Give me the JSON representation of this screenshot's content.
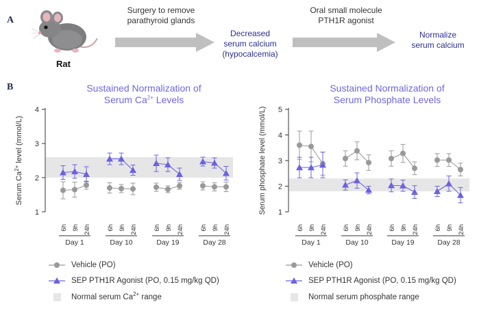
{
  "panelA": {
    "label": "A",
    "animal_label": "Rat",
    "step1": "Surgery to remove\nparathyroid glands",
    "outcome1_line1": "Decreased",
    "outcome1_line2": "serum calcium",
    "outcome1_line3": "(hypocalcemia)",
    "step2": "Oral small molecule\nPTH1R agonist",
    "outcome2_line1": "Normalize",
    "outcome2_line2": "serum calcium"
  },
  "panelB": {
    "label": "B"
  },
  "colors": {
    "vehicle": "#999999",
    "agonist": "#6b62e0",
    "band": "#e6e6e6",
    "title": "#6f66e0",
    "arrow": "#bfbfbf"
  },
  "chart_data": [
    {
      "type": "scatter",
      "title_line1": "Sustained Normalization of",
      "title_line2_pre": "Serum Ca",
      "title_line2_sup": "2+",
      "title_line2_post": " Levels",
      "ylabel_pre": "Serum Ca",
      "ylabel_sup": "2+",
      "ylabel_post": " level (mmol/L)",
      "ylim": [
        1,
        4
      ],
      "yticks": [
        "1",
        "2",
        "3",
        "4"
      ],
      "normal_range": [
        2.0,
        2.6
      ],
      "timepoints": [
        "6h",
        "9h",
        "24h"
      ],
      "days": [
        "Day 1",
        "Day 10",
        "Day 19",
        "Day 28"
      ],
      "series": [
        {
          "name": "Vehicle (PO)",
          "marker": "circle",
          "values": [
            1.63,
            1.65,
            1.78,
            1.7,
            1.68,
            1.67,
            1.72,
            1.66,
            1.76,
            1.76,
            1.73,
            1.73
          ],
          "errors": [
            0.25,
            0.22,
            0.12,
            0.15,
            0.12,
            0.17,
            0.12,
            0.1,
            0.1,
            0.12,
            0.12,
            0.14
          ]
        },
        {
          "name": "SEP PTH1R Agonist (PO, 0.15 mg/kg QD)",
          "marker": "triangle",
          "values": [
            2.15,
            2.18,
            2.1,
            2.55,
            2.55,
            2.22,
            2.42,
            2.38,
            2.1,
            2.47,
            2.43,
            2.13
          ],
          "errors": [
            0.2,
            0.2,
            0.22,
            0.17,
            0.17,
            0.15,
            0.24,
            0.2,
            0.18,
            0.13,
            0.15,
            0.2
          ]
        }
      ],
      "legend": [
        "Vehicle (PO)",
        "SEP PTH1R Agonist (PO, 0.15 mg/kg QD)"
      ],
      "band_legend_pre": "Normal serum Ca",
      "band_legend_sup": "2+",
      "band_legend_post": " range"
    },
    {
      "type": "scatter",
      "title_line1": "Sustained Normalization of",
      "title_line2": "Serum Phosphate Levels",
      "ylabel": "Serum phosphate level (mmol/L)",
      "ylim": [
        1,
        5
      ],
      "yticks": [
        "1",
        "2",
        "3",
        "4",
        "5"
      ],
      "normal_range": [
        1.8,
        2.3
      ],
      "timepoints": [
        "6h",
        "9h",
        "24h"
      ],
      "days": [
        "Day 1",
        "Day 10",
        "Day 19",
        "Day 28"
      ],
      "series": [
        {
          "name": "Vehicle (PO)",
          "marker": "circle",
          "values": [
            3.6,
            3.55,
            2.88,
            3.08,
            3.38,
            2.92,
            3.08,
            3.28,
            2.7,
            3.02,
            3.02,
            2.65
          ],
          "errors": [
            0.55,
            0.6,
            0.45,
            0.3,
            0.35,
            0.3,
            0.3,
            0.35,
            0.25,
            0.25,
            0.25,
            0.25
          ]
        },
        {
          "name": "SEP PTH1R Agonist (PO, 0.15 mg/kg QD)",
          "marker": "triangle",
          "values": [
            2.73,
            2.73,
            2.83,
            2.05,
            2.22,
            1.85,
            2.03,
            2.02,
            1.77,
            1.8,
            2.1,
            1.65
          ],
          "errors": [
            0.4,
            0.4,
            0.5,
            0.2,
            0.3,
            0.15,
            0.25,
            0.22,
            0.25,
            0.2,
            0.3,
            0.3
          ]
        }
      ],
      "legend": [
        "Vehicle (PO)",
        "SEP PTH1R Agonist (PO, 0.15 mg/kg QD)"
      ],
      "band_legend": "Normal serum phosphate range"
    }
  ]
}
